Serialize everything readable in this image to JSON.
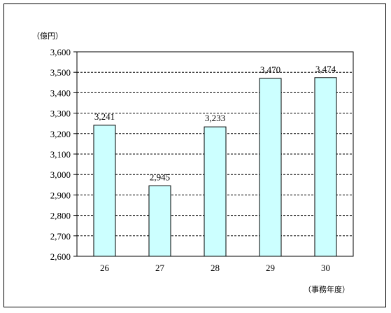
{
  "chart_data": {
    "type": "bar",
    "categories": [
      "26",
      "27",
      "28",
      "29",
      "30"
    ],
    "values": [
      3241,
      2945,
      3233,
      3470,
      3474
    ],
    "data_labels": [
      "3,241",
      "2,945",
      "3,233",
      "3,470",
      "3,474"
    ],
    "y_unit": "（億円）",
    "x_unit": "（事務年度）",
    "ylim": [
      2600,
      3600
    ],
    "yticks": [
      2600,
      2700,
      2800,
      2900,
      3000,
      3100,
      3200,
      3300,
      3400,
      3500,
      3600
    ],
    "ytick_labels": [
      "2,600",
      "2,700",
      "2,800",
      "2,900",
      "3,000",
      "3,100",
      "3,200",
      "3,300",
      "3,400",
      "3,500",
      "3,600"
    ],
    "grid": true,
    "grid_style": "dashed",
    "legend": "none",
    "colors": {
      "bar_fill": "#ccffff",
      "bar_stroke": "#000000",
      "grid": "#000000",
      "axis": "#000000"
    }
  }
}
